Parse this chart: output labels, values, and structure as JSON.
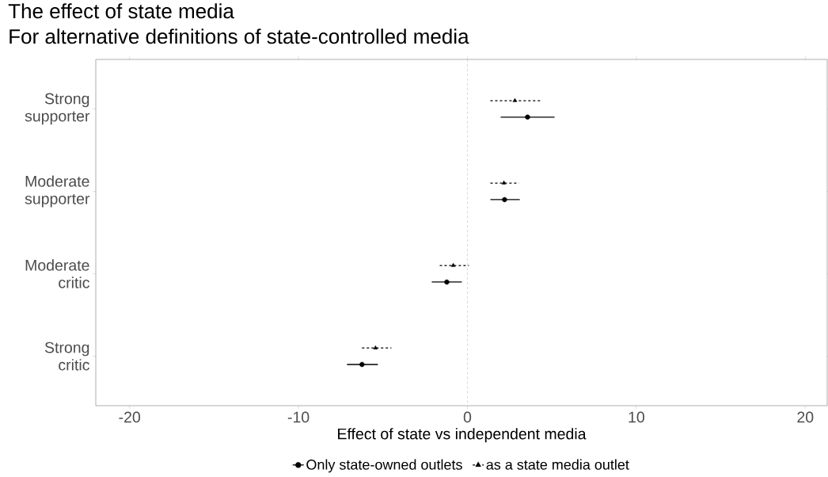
{
  "chart_data": {
    "type": "scatter",
    "orientation": "horizontal",
    "title": "The effect of state media",
    "subtitle": "For alternative definitions of state-controlled media",
    "xlabel": "Effect of state vs independent media",
    "categories": [
      "Strong supporter",
      "Moderate supporter",
      "Moderate critic",
      "Strong critic"
    ],
    "xlim": [
      -22,
      21.3
    ],
    "xticks": [
      -20,
      -10,
      0,
      10,
      20
    ],
    "legend": "bottom",
    "ref_lines": [
      {
        "axis": "x",
        "value": 0,
        "color": "#cccccc",
        "line_style": "dashed"
      }
    ],
    "series": [
      {
        "name": "Only state-owned outlets",
        "color": "#000000",
        "marker": "circle",
        "line_style": "solid",
        "values": [
          3.56,
          2.2,
          -1.22,
          -6.24
        ],
        "errors": [
          [
            1.97,
            5.16
          ],
          [
            1.36,
            3.1
          ],
          [
            -2.11,
            -0.33
          ],
          [
            -7.13,
            -5.3
          ]
        ]
      },
      {
        "name": "as a state media outlet",
        "color": "#000000",
        "marker": "triangle",
        "line_style": "dashed",
        "values": [
          2.81,
          2.16,
          -0.84,
          -5.44
        ],
        "errors": [
          [
            1.36,
            4.41
          ],
          [
            1.36,
            3.05
          ],
          [
            -1.64,
            0.09
          ],
          [
            -6.24,
            -4.5
          ]
        ]
      }
    ]
  }
}
